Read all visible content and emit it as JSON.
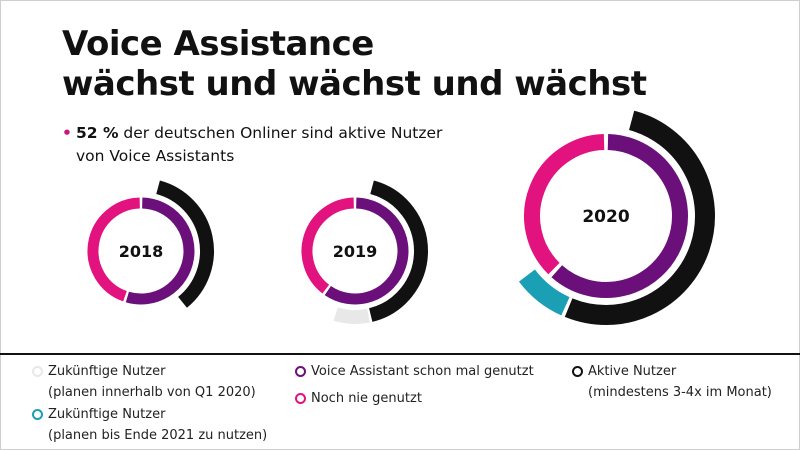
{
  "title_line1": "Voice Assistance",
  "title_line2": "wächst und wächst und wächst",
  "bullet": {
    "symbol": "•",
    "highlight": "52 %",
    "text_line1": " der deutschen Onliner sind aktive Nutzer",
    "text_line2": "von Voice Assistants"
  },
  "colors": {
    "voice_used": "#6b0f7a",
    "never_used": "#e2137e",
    "active": "#111111",
    "future_q1": "#e8e8e8",
    "future_2021": "#1a9fb5"
  },
  "chart_data": {
    "type": "donut",
    "title": "",
    "charts": [
      {
        "year": "2018",
        "voice_used_share": 0.55,
        "never_used_share": 0.45,
        "active_share": 0.35,
        "future_q1_share": 0,
        "future_2021_share": 0
      },
      {
        "year": "2019",
        "voice_used_share": 0.6,
        "never_used_share": 0.4,
        "active_share": 0.42,
        "future_q1_share": 0.08,
        "future_2021_share": 0
      },
      {
        "year": "2020",
        "voice_used_share": 0.62,
        "never_used_share": 0.38,
        "active_share": 0.52,
        "future_q1_share": 0,
        "future_2021_share": 0.08
      }
    ]
  },
  "legend": [
    {
      "key": "future_q1",
      "line1": "Zukünftige Nutzer",
      "line2": "(planen innerhalb von Q1 2020)"
    },
    {
      "key": "future_2021",
      "line1": "Zukünftige Nutzer",
      "line2": "(planen bis Ende 2021 zu nutzen)"
    },
    {
      "key": "voice_used",
      "line1": "Voice Assistant schon mal genutzt",
      "line2": ""
    },
    {
      "key": "never_used",
      "line1": "Noch nie genutzt",
      "line2": ""
    },
    {
      "key": "active",
      "line1": "Aktive Nutzer",
      "line2": "(mindestens 3-4x im Monat)"
    }
  ]
}
